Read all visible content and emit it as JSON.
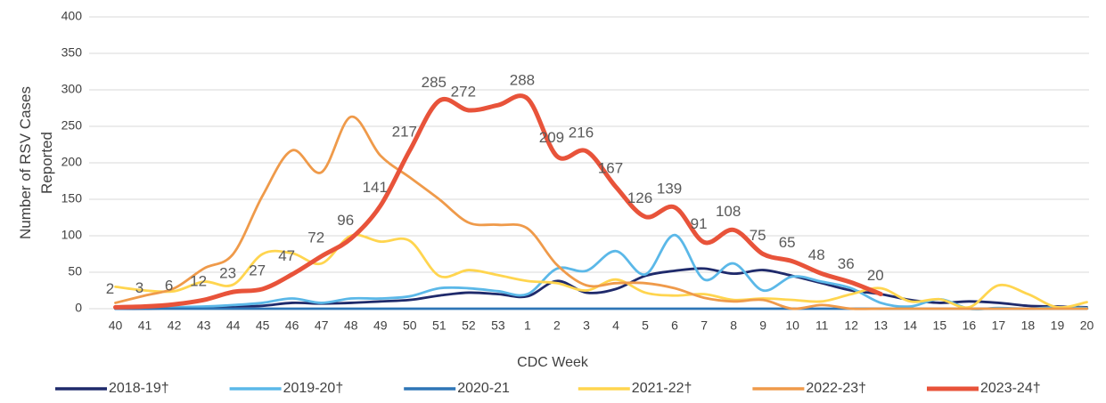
{
  "chart_data": {
    "type": "line",
    "y_label": "Number of RSV  Cases Reported",
    "x_label": "CDC Week",
    "categories": [
      "40",
      "41",
      "42",
      "43",
      "44",
      "45",
      "46",
      "47",
      "48",
      "49",
      "50",
      "51",
      "52",
      "53",
      "1",
      "2",
      "3",
      "4",
      "5",
      "6",
      "7",
      "8",
      "9",
      "10",
      "11",
      "12",
      "13",
      "14",
      "15",
      "16",
      "17",
      "18",
      "19",
      "20"
    ],
    "ylim": [
      0,
      400
    ],
    "yticks": [
      0,
      50,
      100,
      150,
      200,
      250,
      300,
      350,
      400
    ],
    "grid": true,
    "series": [
      {
        "name": "2018-19†",
        "color": "#1f2a6b",
        "values": [
          0,
          0,
          1,
          2,
          3,
          4,
          8,
          7,
          8,
          10,
          12,
          18,
          22,
          20,
          17,
          38,
          22,
          27,
          45,
          52,
          55,
          48,
          53,
          45,
          35,
          25,
          20,
          12,
          8,
          10,
          8,
          4,
          3,
          2
        ]
      },
      {
        "name": "2019-20†",
        "color": "#5bb8e8",
        "values": [
          0,
          1,
          2,
          3,
          5,
          8,
          14,
          8,
          14,
          14,
          17,
          28,
          28,
          24,
          20,
          55,
          52,
          79,
          47,
          101,
          40,
          62,
          25,
          44,
          37,
          28,
          8,
          3,
          13,
          0,
          1,
          0,
          2,
          1
        ]
      },
      {
        "name": "2020-21",
        "color": "#2e75b6",
        "values": [
          0,
          0,
          0,
          0,
          0,
          0,
          0,
          0,
          0,
          0,
          0,
          0,
          0,
          0,
          0,
          0,
          0,
          0,
          0,
          0,
          0,
          0,
          0,
          0,
          0,
          0,
          0,
          0,
          0,
          0,
          0,
          0,
          0,
          0
        ]
      },
      {
        "name": "2021-22†",
        "color": "#ffd54f",
        "values": [
          30,
          25,
          24,
          37,
          33,
          75,
          76,
          62,
          100,
          92,
          93,
          45,
          53,
          46,
          38,
          35,
          25,
          40,
          22,
          18,
          20,
          12,
          14,
          12,
          10,
          20,
          28,
          10,
          13,
          2,
          32,
          20,
          2,
          9
        ]
      },
      {
        "name": "2022-23†",
        "color": "#ef9a4a",
        "values": [
          8,
          18,
          28,
          55,
          75,
          155,
          217,
          187,
          263,
          210,
          180,
          150,
          118,
          115,
          110,
          60,
          32,
          35,
          35,
          28,
          15,
          10,
          12,
          0,
          5,
          0,
          0,
          0,
          0,
          0,
          0,
          0,
          0,
          0
        ]
      },
      {
        "name": "2023-24†",
        "color": "#e8533a",
        "values": [
          2,
          3,
          6,
          12,
          23,
          27,
          47,
          72,
          96,
          141,
          217,
          285,
          272,
          279,
          288,
          209,
          216,
          167,
          126,
          139,
          91,
          108,
          75,
          65,
          48,
          36,
          20,
          null,
          null,
          null,
          null,
          null,
          null,
          null
        ],
        "value_labels": [
          "2",
          "3",
          "6",
          "12",
          "23",
          "27",
          "47",
          "72",
          "96",
          "141",
          "217",
          "285",
          "272",
          null,
          "288",
          "209",
          "216",
          "167",
          "126",
          "139",
          "91",
          "108",
          "75",
          "65",
          "48",
          "36",
          "20",
          null,
          null,
          null,
          null,
          null,
          null,
          null
        ]
      }
    ]
  }
}
